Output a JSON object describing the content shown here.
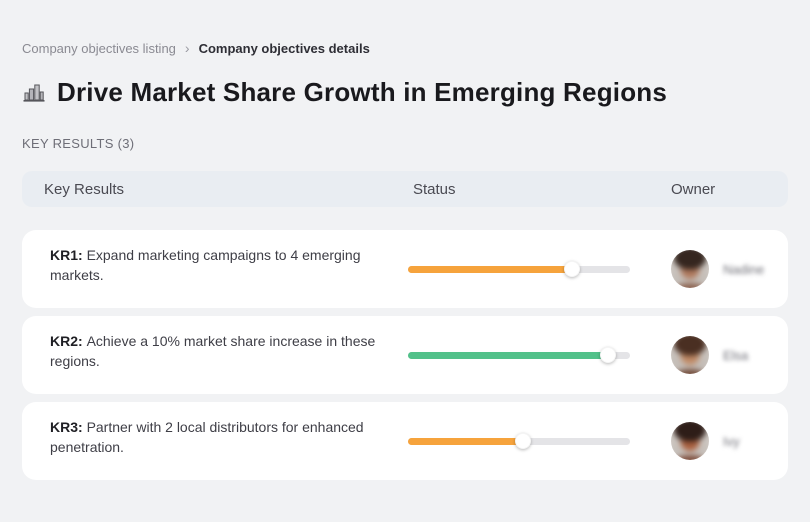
{
  "page": {
    "background": "#f1f2f4"
  },
  "breadcrumb": {
    "separator": "›",
    "items": [
      {
        "label": "Company objectives listing",
        "active": false
      },
      {
        "label": "Company objectives details",
        "active": true
      }
    ]
  },
  "header": {
    "icon": "building-bars-icon",
    "title": "Drive Market Share Growth in Emerging Regions"
  },
  "section": {
    "label": "KEY RESULTS (3)"
  },
  "table": {
    "columns": {
      "key_results": "Key Results",
      "status": "Status",
      "owner": "Owner"
    },
    "rows": [
      {
        "kr_label": "KR1:",
        "description": "Expand marketing campaigns to 4 emerging markets.",
        "progress_percent": 74,
        "progress_color": "#f6a33c",
        "owner_name": "Nadine",
        "avatar_colors": {
          "bg": "#d4cfca",
          "hair": "#35261f",
          "skin": "#b07a5e",
          "torso": "#8a5f4c"
        }
      },
      {
        "kr_label": "KR2:",
        "description": "Achieve a 10% market share increase in these regions.",
        "progress_percent": 90,
        "progress_color": "#52c18a",
        "owner_name": "Elsa",
        "avatar_colors": {
          "bg": "#cfc9c4",
          "hair": "#4a2f22",
          "skin": "#c08a66",
          "torso": "#6e4634"
        }
      },
      {
        "kr_label": "KR3:",
        "description": "Partner with 2 local distributors for enhanced penetration.",
        "progress_percent": 52,
        "progress_color": "#f6a33c",
        "owner_name": "Ivy",
        "avatar_colors": {
          "bg": "#d8d2cd",
          "hair": "#2e1d18",
          "skin": "#a9603f",
          "torso": "#7c4a38"
        }
      }
    ]
  },
  "colors": {
    "page_bg": "#f1f2f4",
    "table_header_bg": "#e9edf2",
    "card_bg": "#ffffff",
    "track": "#e4e4e7",
    "orange": "#f6a33c",
    "green": "#52c18a"
  }
}
